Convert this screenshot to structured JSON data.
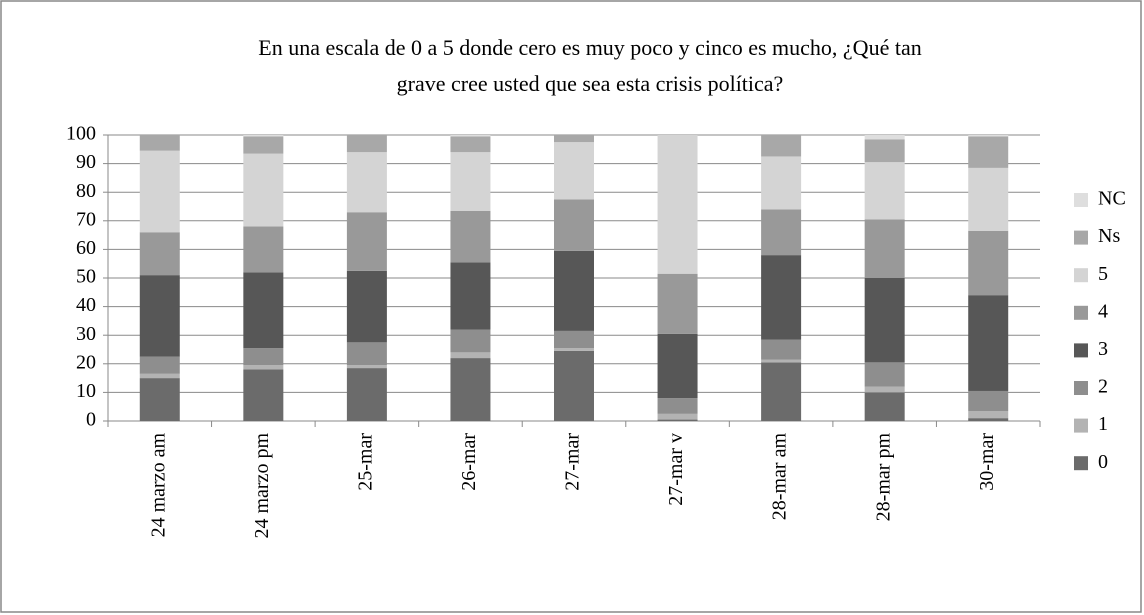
{
  "chart_data": {
    "type": "stacked_bar",
    "title": [
      "En una escala de 0 a 5 donde cero es muy poco y cinco es mucho, ¿Qué tan",
      "grave cree usted que sea esta crisis política?"
    ],
    "categories": [
      "24 marzo am",
      "24 marzo pm",
      "25-mar",
      "26-mar",
      "27-mar",
      "27-mar v",
      "28-mar am",
      "28-mar pm",
      "30-mar"
    ],
    "series": [
      {
        "name": "0",
        "color": "#6b6b6b",
        "values": [
          15,
          18,
          18.5,
          22,
          24.5,
          0.5,
          20.5,
          10,
          1
        ]
      },
      {
        "name": "1",
        "color": "#b3b3b3",
        "values": [
          1.5,
          1.5,
          1,
          2,
          1,
          2,
          1,
          2,
          2.5
        ]
      },
      {
        "name": "2",
        "color": "#8e8e8e",
        "values": [
          6,
          6,
          8,
          8,
          6,
          5.5,
          7,
          8.5,
          7
        ]
      },
      {
        "name": "3",
        "color": "#575757",
        "values": [
          28.5,
          26.5,
          25,
          23.5,
          28,
          22.5,
          29.5,
          29.5,
          33.5
        ]
      },
      {
        "name": "4",
        "color": "#999999",
        "values": [
          15,
          16,
          20.5,
          18,
          18,
          21,
          16,
          20.5,
          22.5
        ]
      },
      {
        "name": "5",
        "color": "#d4d4d4",
        "values": [
          28.5,
          25.5,
          21,
          20.5,
          20,
          48.5,
          18.5,
          20,
          22
        ]
      },
      {
        "name": "Ns",
        "color": "#a8a8a8",
        "values": [
          5.5,
          6,
          6,
          5.5,
          2.5,
          0,
          7.5,
          8,
          11
        ]
      },
      {
        "name": "NC",
        "color": "#dedede",
        "values": [
          0,
          0.5,
          0,
          0.5,
          0,
          0,
          0,
          1.5,
          0.5
        ]
      }
    ],
    "ylim": [
      0,
      100
    ],
    "yticks": [
      0,
      10,
      20,
      30,
      40,
      50,
      60,
      70,
      80,
      90,
      100
    ],
    "grid": true,
    "legend": "right"
  }
}
